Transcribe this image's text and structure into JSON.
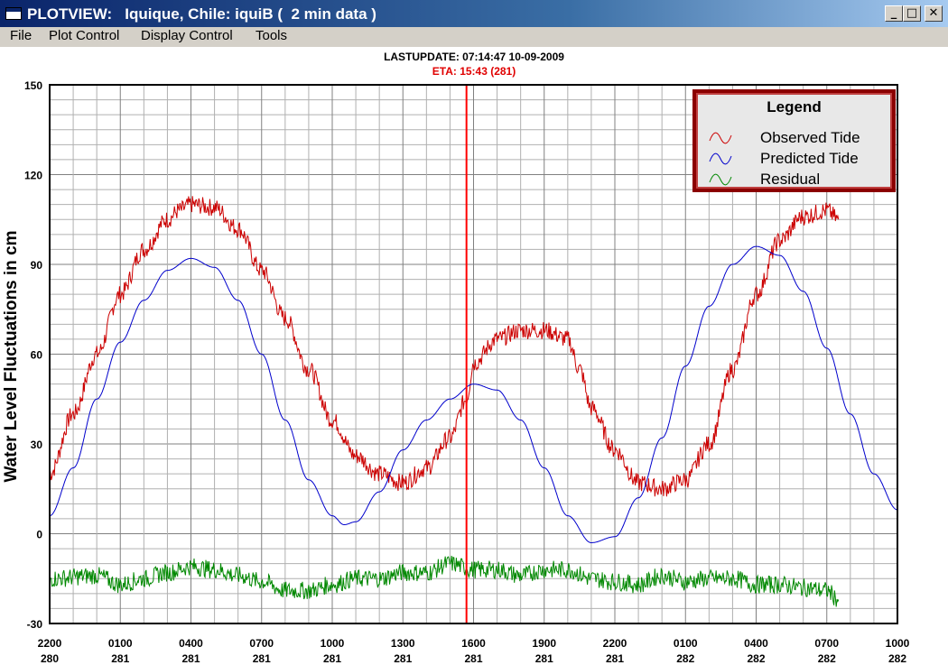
{
  "window": {
    "title": "PLOTVIEW:   Iquique, Chile: iquiB (  2 min data )",
    "minimize_label": "_",
    "maximize_label": "□",
    "close_label": "✕"
  },
  "menu": {
    "items": [
      {
        "label": "File"
      },
      {
        "label": "Plot Control"
      },
      {
        "label": "Display Control"
      },
      {
        "label": "Tools"
      }
    ]
  },
  "header": {
    "lastupdate": "LASTUPDATE: 07:14:47  10-09-2009",
    "eta": "ETA: 15:43 (281)"
  },
  "legend": {
    "title": "Legend",
    "entries": [
      {
        "label": "Observed Tide",
        "color": "#cc0000"
      },
      {
        "label": "Predicted Tide",
        "color": "#0000cc"
      },
      {
        "label": "Residual",
        "color": "#008800"
      }
    ]
  },
  "chart_data": {
    "type": "line",
    "ylabel": "Water Level Fluctuations in cm",
    "ylim": [
      -30,
      150
    ],
    "yticks": [
      -30,
      0,
      30,
      60,
      90,
      120,
      150
    ],
    "x_unit": "hours from 2200 day 280",
    "xlim": [
      0,
      36
    ],
    "xticks": [
      {
        "time": "2200",
        "day": "280"
      },
      {
        "time": "0100",
        "day": "281"
      },
      {
        "time": "0400",
        "day": "281"
      },
      {
        "time": "0700",
        "day": "281"
      },
      {
        "time": "1000",
        "day": "281"
      },
      {
        "time": "1300",
        "day": "281"
      },
      {
        "time": "1600",
        "day": "281"
      },
      {
        "time": "1900",
        "day": "281"
      },
      {
        "time": "2200",
        "day": "281"
      },
      {
        "time": "0100",
        "day": "282"
      },
      {
        "time": "0400",
        "day": "282"
      },
      {
        "time": "0700",
        "day": "282"
      },
      {
        "time": "1000",
        "day": "282"
      }
    ],
    "eta_marker_x": 17.7,
    "grid": true,
    "legend_position": "top-right",
    "colors": {
      "eta_line": "#ff0000",
      "grid": "#b0b0b0",
      "grid_major": "#808080"
    },
    "series": [
      {
        "name": "Observed Tide",
        "color": "#cc0000",
        "x": [
          0,
          1,
          2,
          3,
          4,
          5,
          5.5,
          6,
          7,
          8,
          9,
          10,
          11,
          12,
          13,
          14,
          15,
          16,
          17,
          17.7,
          18,
          19,
          20,
          21,
          22,
          22.5,
          23,
          24,
          25,
          26,
          27,
          28,
          29,
          30,
          31,
          32,
          33,
          33.5
        ],
        "y": [
          20,
          40,
          60,
          80,
          95,
          105,
          108,
          110,
          109,
          102,
          88,
          72,
          55,
          38,
          26,
          20,
          17,
          22,
          32,
          45,
          57,
          65,
          68,
          68,
          65,
          55,
          42,
          28,
          17,
          15,
          18,
          30,
          55,
          80,
          98,
          106,
          108,
          105
        ]
      },
      {
        "name": "Predicted Tide",
        "color": "#0000cc",
        "x": [
          0,
          1,
          2,
          3,
          4,
          5,
          6,
          7,
          8,
          9,
          10,
          11,
          12,
          12.5,
          13,
          14,
          15,
          16,
          17,
          18,
          19,
          20,
          21,
          22,
          23,
          24,
          25,
          26,
          27,
          28,
          29,
          30,
          31,
          32,
          33,
          34,
          35,
          36
        ],
        "y": [
          6,
          22,
          45,
          64,
          78,
          88,
          92,
          89,
          78,
          60,
          38,
          18,
          6,
          3,
          4,
          14,
          28,
          38,
          45,
          50,
          48,
          38,
          22,
          6,
          -3,
          -1,
          12,
          32,
          56,
          76,
          90,
          96,
          93,
          81,
          62,
          40,
          20,
          8
        ]
      },
      {
        "name": "Residual",
        "color": "#008800",
        "x": [
          0,
          2,
          3,
          4,
          5,
          6,
          7,
          8,
          9,
          10,
          11,
          12,
          13,
          14,
          15,
          16,
          17,
          18,
          19,
          20,
          21,
          22,
          23,
          24,
          25,
          26,
          27,
          28,
          29,
          30,
          31,
          32,
          33,
          33.5
        ],
        "y": [
          -15,
          -14,
          -17,
          -15,
          -13,
          -11,
          -12,
          -14,
          -16,
          -19,
          -19,
          -17,
          -15,
          -15,
          -13,
          -13,
          -10,
          -12,
          -12,
          -14,
          -12,
          -12,
          -15,
          -16,
          -17,
          -14,
          -16,
          -15,
          -15,
          -17,
          -17,
          -18,
          -19,
          -22
        ]
      }
    ]
  }
}
